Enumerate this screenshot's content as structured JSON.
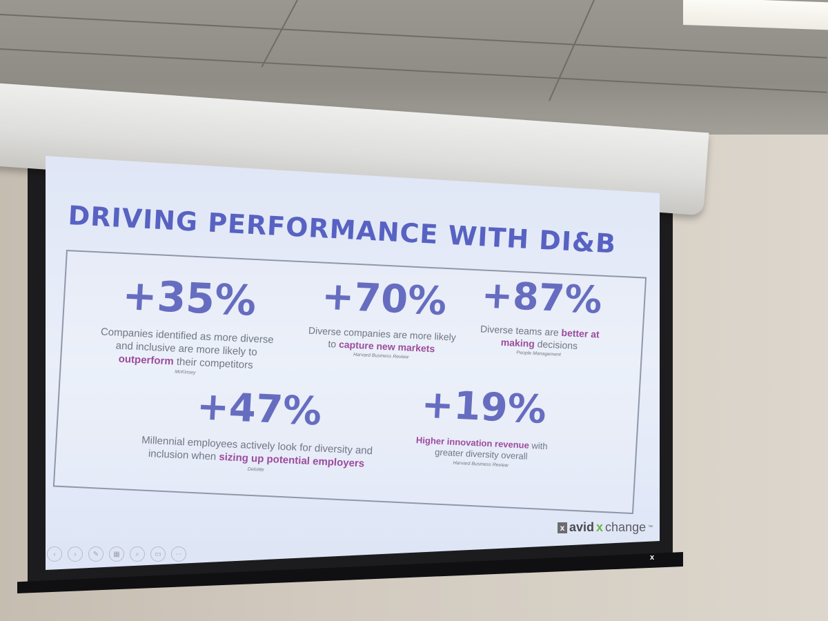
{
  "slide": {
    "title": "DRIVING PERFORMANCE WITH DI&B",
    "stats": [
      {
        "value": "+35%",
        "text_before": "Companies identified as more diverse and inclusive are more likely to ",
        "highlight": "outperform",
        "text_after": " their competitors",
        "source": "McKinsey"
      },
      {
        "value": "+70%",
        "text_before": "Diverse companies are more likely to ",
        "highlight": "capture new markets",
        "text_after": "",
        "source": "Harvard Business Review"
      },
      {
        "value": "+87%",
        "text_before": "Diverse teams are ",
        "highlight": "better at making",
        "text_after": " decisions",
        "source": "People Management"
      },
      {
        "value": "+47%",
        "text_before": "Millennial employees actively look for diversity and inclusion when ",
        "highlight": "sizing up potential employers",
        "text_after": "",
        "source": "Deloitte"
      },
      {
        "value": "+19%",
        "text_before": "",
        "highlight": "Higher innovation revenue",
        "text_after": " with greater diversity overall",
        "source": "Harvard Business Review"
      }
    ],
    "brand": {
      "mark": "x",
      "part1": "avid",
      "part2": "x",
      "part3": "change",
      "tm": "™"
    }
  },
  "controls": [
    {
      "icon": "back-icon",
      "glyph": "‹"
    },
    {
      "icon": "play-icon",
      "glyph": "›"
    },
    {
      "icon": "pen-icon",
      "glyph": "✎"
    },
    {
      "icon": "slides-icon",
      "glyph": "▦"
    },
    {
      "icon": "zoom-icon",
      "glyph": "⌕"
    },
    {
      "icon": "screen-icon",
      "glyph": "▭"
    },
    {
      "icon": "more-icon",
      "glyph": "⋯"
    }
  ],
  "screen_bar_logo": "x"
}
